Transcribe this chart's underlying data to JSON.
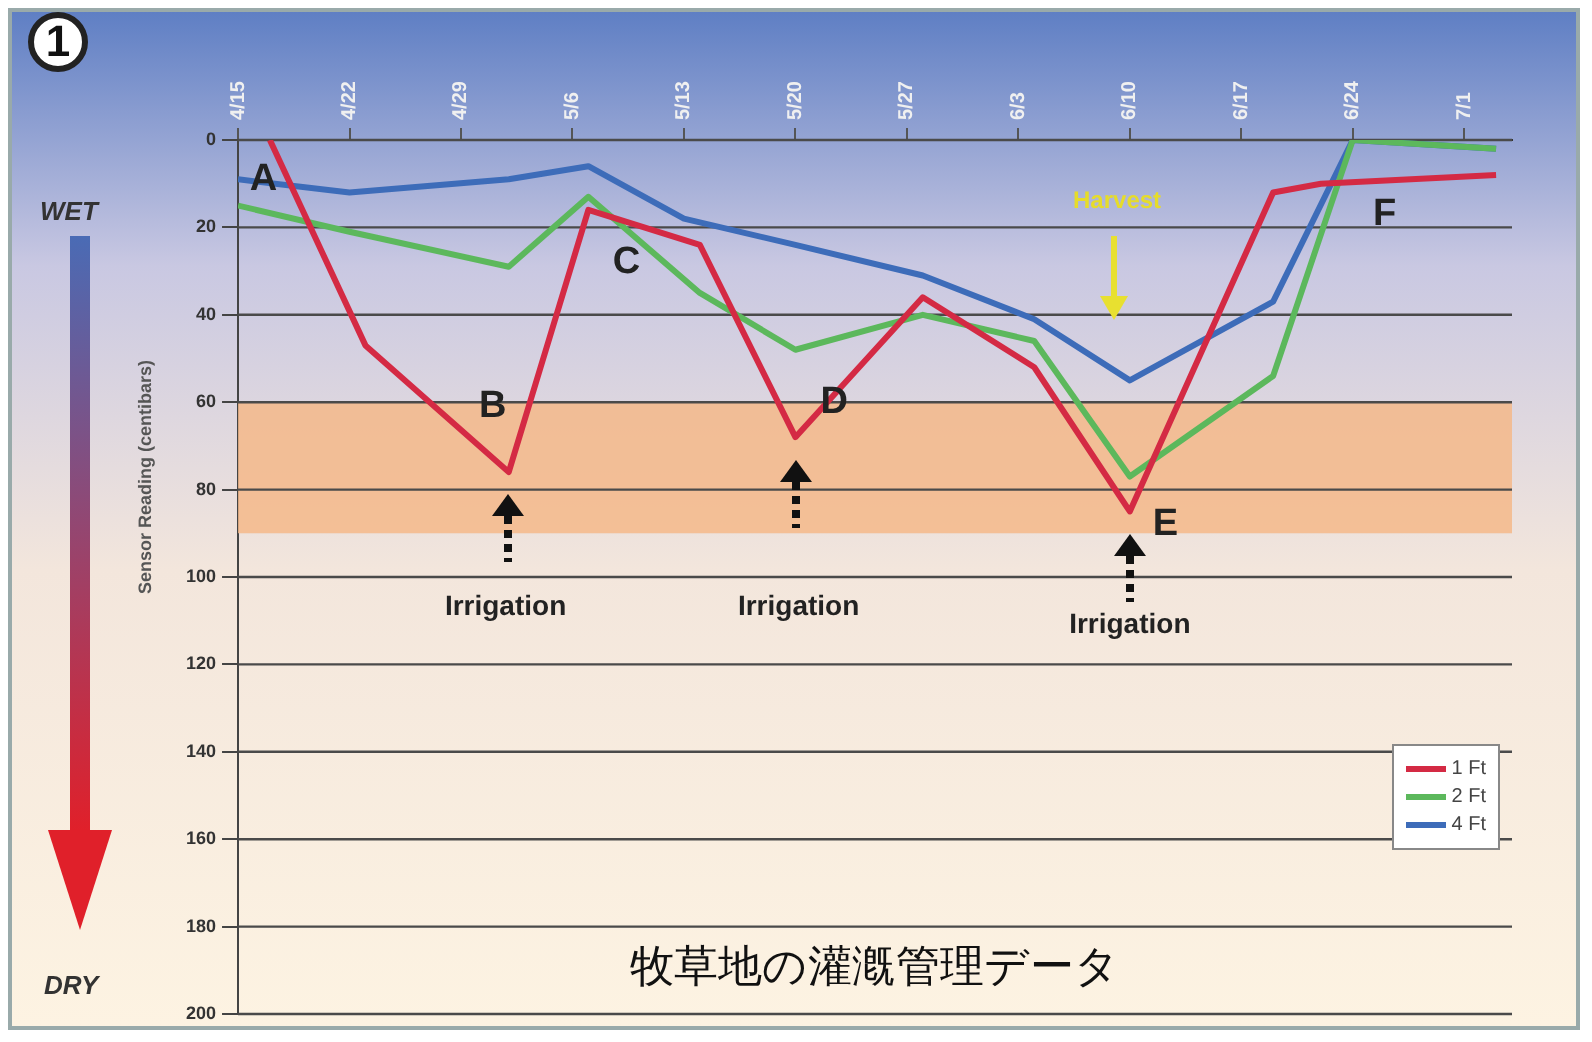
{
  "chart_data": {
    "type": "line",
    "title": "牧草地の灌漑管理データ",
    "ylabel": "Sensor Reading (centibars)",
    "xlim": [
      "--04-15",
      "--07-04"
    ],
    "xticks": [
      {
        "value": "--04-15",
        "label": "4/15"
      },
      {
        "value": "--04-22",
        "label": "4/22"
      },
      {
        "value": "--04-29",
        "label": "4/29"
      },
      {
        "value": "--05-06",
        "label": "5/6"
      },
      {
        "value": "--05-13",
        "label": "5/13"
      },
      {
        "value": "--05-20",
        "label": "5/20"
      },
      {
        "value": "--05-27",
        "label": "5/27"
      },
      {
        "value": "--06-03",
        "label": "6/3"
      },
      {
        "value": "--06-10",
        "label": "6/10"
      },
      {
        "value": "--06-17",
        "label": "6/17"
      },
      {
        "value": "--06-24",
        "label": "6/24"
      },
      {
        "value": "--07-01",
        "label": "7/1"
      }
    ],
    "ylim": [
      200,
      0
    ],
    "yticks": [
      0,
      20,
      40,
      60,
      80,
      100,
      120,
      140,
      160,
      180,
      200
    ],
    "grid": "y",
    "legend": "bottom right",
    "series": [
      {
        "name": "1 Ft",
        "color": "#d42a44",
        "x": [
          "--04-17",
          "--04-23",
          "--05-02",
          "--05-07",
          "--05-14",
          "--05-20",
          "--05-28",
          "--06-04",
          "--06-10",
          "--06-19",
          "--06-22",
          "--07-03"
        ],
        "values": [
          0,
          47,
          76,
          16,
          24,
          68,
          36,
          52,
          85,
          12,
          10,
          8
        ]
      },
      {
        "name": "2 Ft",
        "color": "#5cb85c",
        "x": [
          "--04-15",
          "--04-22",
          "--05-02",
          "--05-07",
          "--05-14",
          "--05-20",
          "--05-28",
          "--06-04",
          "--06-10",
          "--06-19",
          "--06-24",
          "--07-03"
        ],
        "values": [
          15,
          21,
          29,
          13,
          35,
          48,
          40,
          46,
          77,
          54,
          0,
          2
        ]
      },
      {
        "name": "4 Ft",
        "color": "#3d6cb9",
        "x": [
          "--04-15",
          "--04-22",
          "--05-02",
          "--05-07",
          "--05-13",
          "--05-20",
          "--05-28",
          "--06-04",
          "--06-10",
          "--06-19",
          "--06-24",
          "--07-03"
        ],
        "values": [
          9,
          12,
          9,
          6,
          18,
          24,
          31,
          41,
          55,
          37,
          0,
          2
        ]
      }
    ],
    "bands": [
      {
        "axis": "y",
        "from": 60,
        "to": 90,
        "color": "#f5b98a"
      }
    ],
    "annotations": [
      "1",
      "WET",
      "DRY",
      "A",
      "B",
      "C",
      "D",
      "E",
      "F",
      "Irrigation",
      "Irrigation",
      "Irrigation",
      "Harvest"
    ]
  }
}
